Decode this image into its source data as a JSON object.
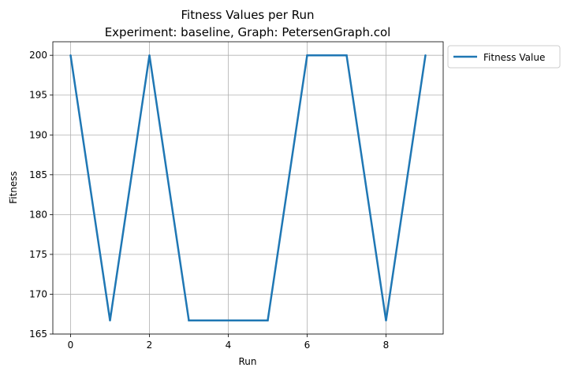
{
  "chart_data": {
    "type": "line",
    "title": "Fitness Values per Run",
    "subtitle": "Experiment: baseline, Graph: PetersenGraph.col",
    "xlabel": "Run",
    "ylabel": "Fitness",
    "xlim": [
      -0.45,
      9.45
    ],
    "ylim": [
      165,
      201.7
    ],
    "xticks": [
      0,
      2,
      4,
      6,
      8
    ],
    "yticks": [
      165,
      170,
      175,
      180,
      185,
      190,
      195,
      200
    ],
    "grid": true,
    "legend_position": "outside-top-right",
    "series": [
      {
        "name": "Fitness Value",
        "color": "#1f77b4",
        "x": [
          0,
          1,
          2,
          3,
          4,
          5,
          6,
          7,
          8,
          9
        ],
        "y": [
          200,
          166.7,
          200,
          166.7,
          166.7,
          166.7,
          200,
          200,
          166.7,
          200
        ]
      }
    ]
  }
}
